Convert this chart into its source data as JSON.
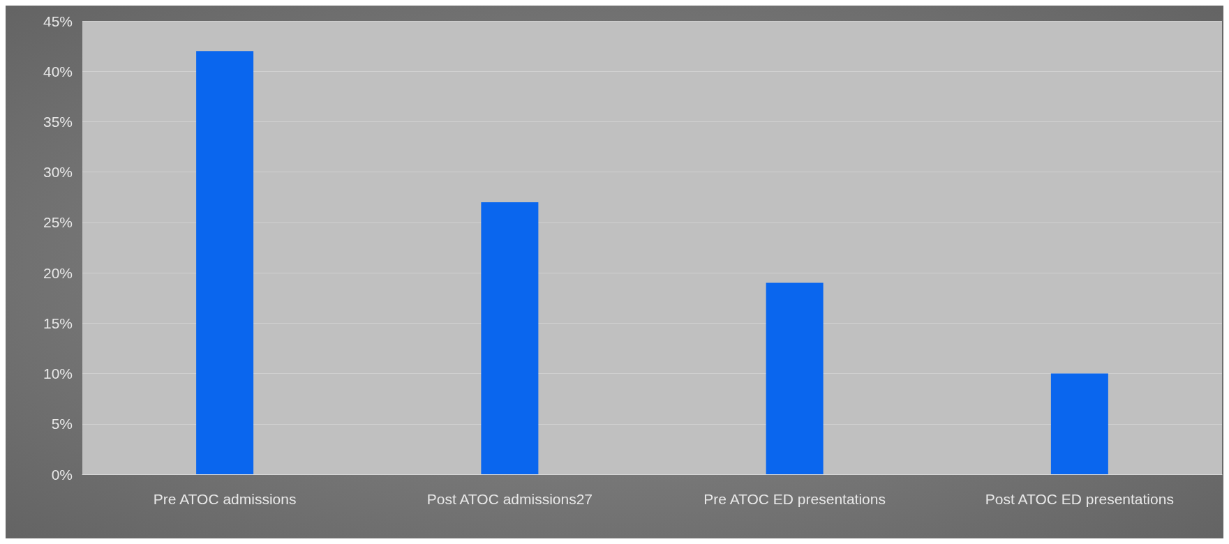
{
  "chart_data": {
    "type": "bar",
    "categories": [
      "Pre ATOC admissions",
      "Post ATOC admissions27",
      "Pre ATOC ED presentations",
      "Post ATOC ED presentations"
    ],
    "values": [
      42,
      27,
      19,
      10
    ],
    "color": "#0a66ee",
    "ylim": [
      0,
      45
    ],
    "yticks": [
      {
        "value": 0,
        "label": "0%"
      },
      {
        "value": 5,
        "label": "5%"
      },
      {
        "value": 10,
        "label": "10%"
      },
      {
        "value": 15,
        "label": "15%"
      },
      {
        "value": 20,
        "label": "20%"
      },
      {
        "value": 25,
        "label": "25%"
      },
      {
        "value": 30,
        "label": "30%"
      },
      {
        "value": 35,
        "label": "35%"
      },
      {
        "value": 40,
        "label": "40%"
      },
      {
        "value": 45,
        "label": "45%"
      }
    ],
    "grid": "y"
  }
}
